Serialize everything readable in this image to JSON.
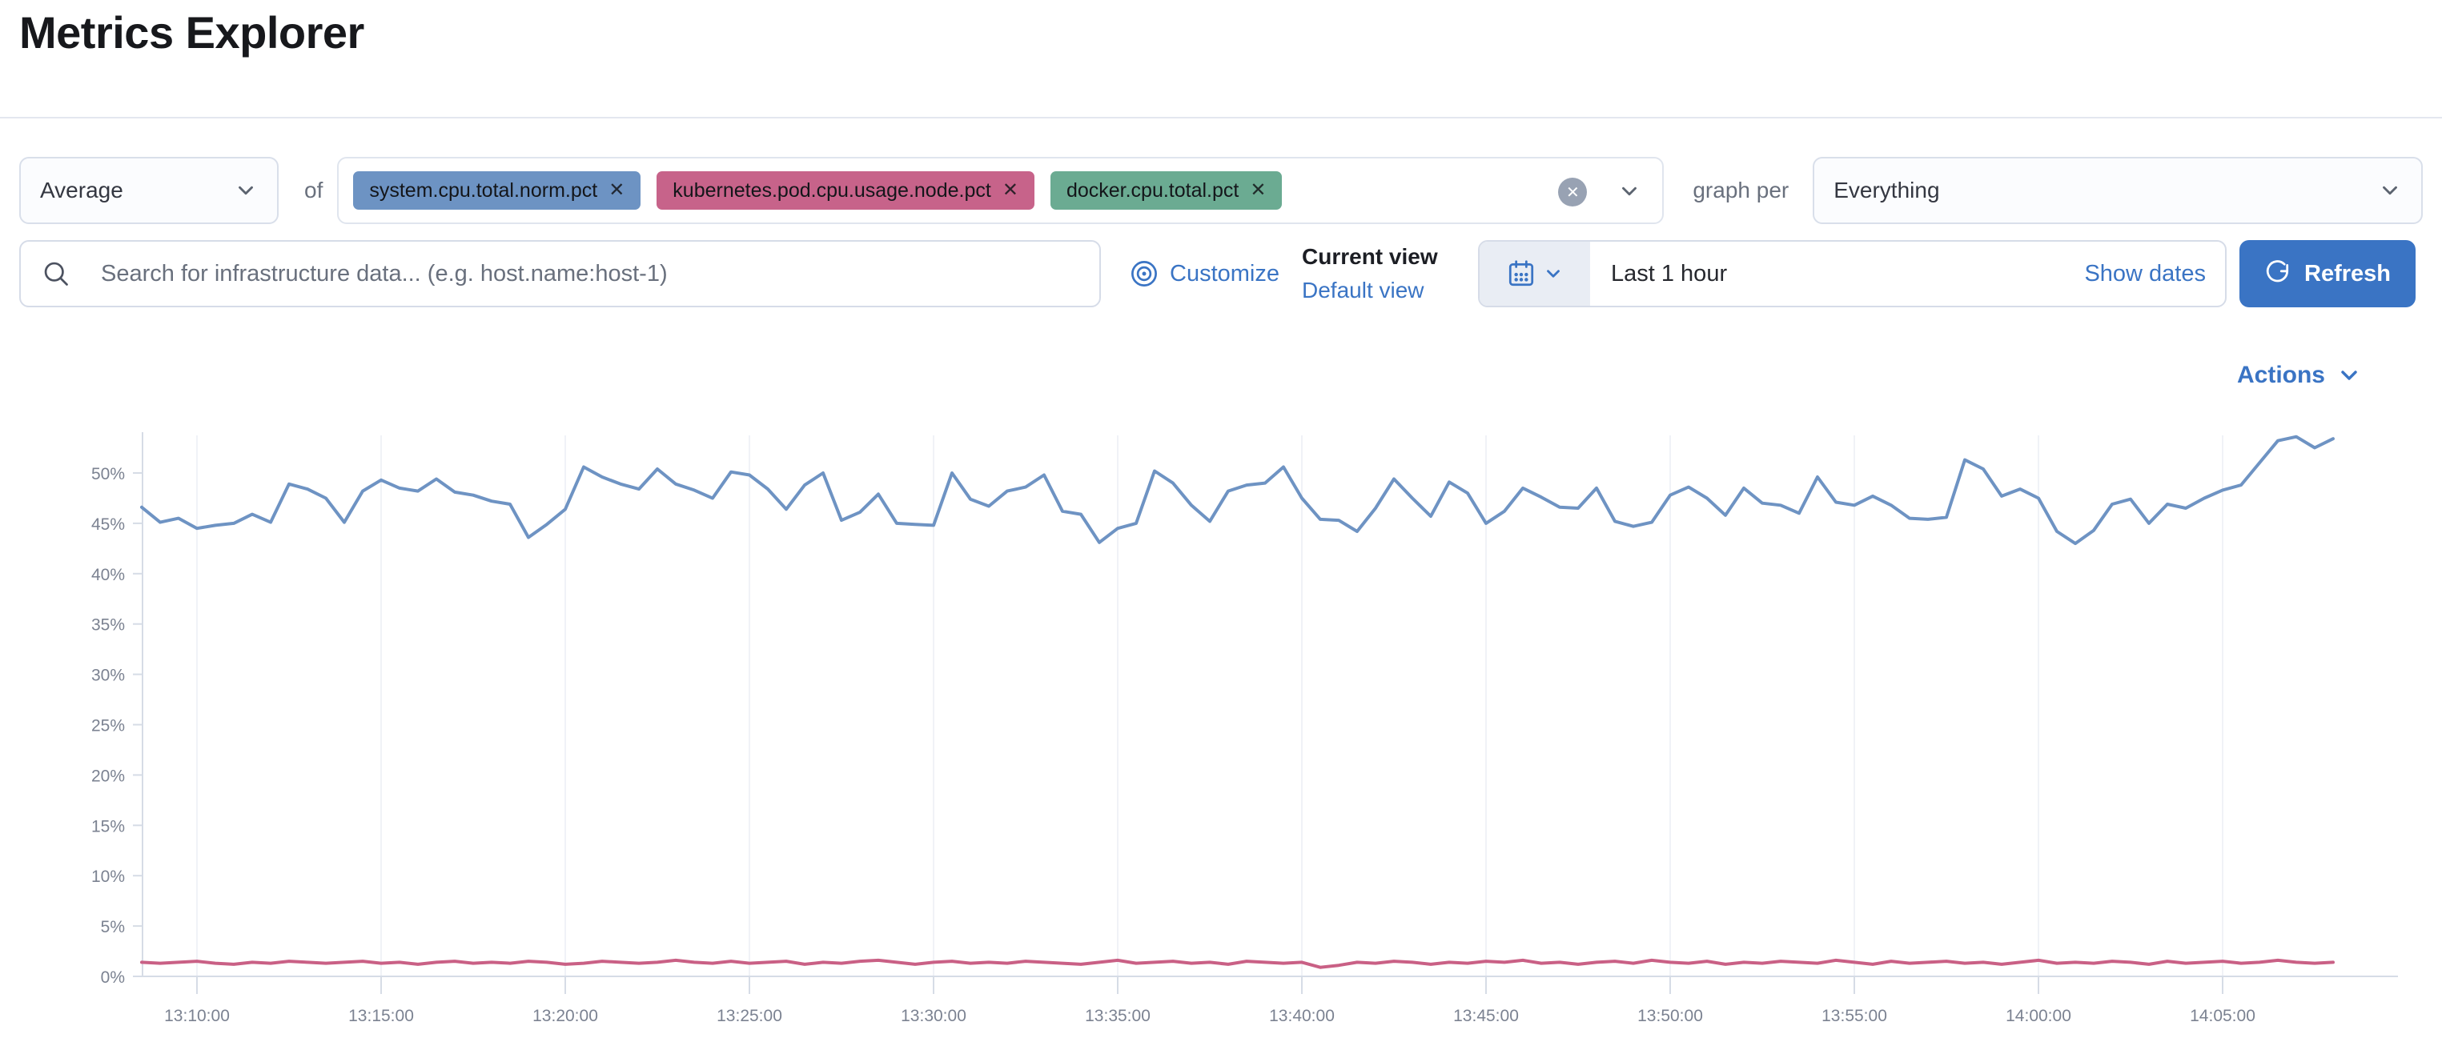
{
  "page": {
    "title": "Metrics Explorer"
  },
  "toolbar": {
    "aggregation": {
      "value": "Average"
    },
    "of_label": "of",
    "metrics": [
      {
        "label": "system.cpu.total.norm.pct",
        "color": "#6d93c3"
      },
      {
        "label": "kubernetes.pod.cpu.usage.node.pct",
        "color": "#c7638a"
      },
      {
        "label": "docker.cpu.total.pct",
        "color": "#6bab92"
      }
    ],
    "graph_per_label": "graph per",
    "group_by": {
      "value": "Everything"
    }
  },
  "search": {
    "placeholder": "Search for infrastructure data... (e.g. host.name:host-1)"
  },
  "view_controls": {
    "customize_label": "Customize",
    "current_view_label": "Current view",
    "default_view_label": "Default view"
  },
  "time_picker": {
    "value": "Last 1 hour",
    "show_dates_label": "Show dates",
    "refresh_label": "Refresh"
  },
  "actions": {
    "label": "Actions"
  },
  "colors": {
    "accent_blue": "#3a74c4",
    "axis_gray": "#d6dce6",
    "tick_text": "#7b8291"
  },
  "chart_data": {
    "type": "line",
    "title": "",
    "xlabel": "",
    "ylabel": "",
    "ylim": [
      0,
      54
    ],
    "grid": "faint-vertical",
    "legend": "none",
    "y_ticks": [
      0,
      5,
      10,
      15,
      20,
      25,
      30,
      35,
      40,
      45,
      50
    ],
    "y_tick_suffix": "%",
    "x_tick_labels": [
      "13:10:00",
      "13:15:00",
      "13:20:00",
      "13:25:00",
      "13:30:00",
      "13:35:00",
      "13:40:00",
      "13:45:00",
      "13:50:00",
      "13:55:00",
      "14:00:00",
      "14:05:00"
    ],
    "x_tick_interval_min": 5,
    "x_start_offset_min": -1.5,
    "x_step_min": 0.5,
    "series": [
      {
        "name": "system.cpu.total.norm.pct",
        "color": "#6e93c3",
        "unit": "%",
        "values": [
          46.6,
          45.1,
          45.5,
          44.5,
          44.8,
          45.0,
          45.9,
          45.1,
          48.9,
          48.4,
          47.5,
          45.1,
          48.2,
          49.3,
          48.5,
          48.2,
          49.4,
          48.1,
          47.8,
          47.2,
          46.9,
          43.6,
          44.9,
          46.4,
          50.6,
          49.6,
          48.9,
          48.4,
          50.4,
          48.9,
          48.3,
          47.5,
          50.1,
          49.8,
          48.4,
          46.4,
          48.8,
          50.0,
          45.3,
          46.1,
          47.9,
          45.0,
          44.9,
          44.8,
          50.0,
          47.4,
          46.7,
          48.2,
          48.6,
          49.8,
          46.2,
          45.9,
          43.1,
          44.5,
          45.0,
          50.2,
          49.0,
          46.8,
          45.2,
          48.2,
          48.8,
          49.0,
          50.6,
          47.5,
          45.4,
          45.3,
          44.2,
          46.5,
          49.4,
          47.5,
          45.7,
          49.1,
          48.0,
          45.0,
          46.2,
          48.5,
          47.6,
          46.6,
          46.5,
          48.5,
          45.2,
          44.7,
          45.1,
          47.8,
          48.6,
          47.5,
          45.8,
          48.5,
          47.0,
          46.8,
          46.0,
          49.6,
          47.1,
          46.8,
          47.7,
          46.8,
          45.5,
          45.4,
          45.6,
          51.3,
          50.4,
          47.7,
          48.4,
          47.5,
          44.2,
          43.0,
          44.3,
          46.9,
          47.4,
          45.0,
          46.9,
          46.5,
          47.5,
          48.3,
          48.8,
          51.0,
          53.2,
          53.6,
          52.5,
          53.4
        ]
      },
      {
        "name": "kubernetes.pod.cpu.usage.node.pct",
        "color": "#c96085",
        "unit": "%",
        "values": [
          1.4,
          1.3,
          1.4,
          1.5,
          1.3,
          1.2,
          1.4,
          1.3,
          1.5,
          1.4,
          1.3,
          1.4,
          1.5,
          1.3,
          1.4,
          1.2,
          1.4,
          1.5,
          1.3,
          1.4,
          1.3,
          1.5,
          1.4,
          1.2,
          1.3,
          1.5,
          1.4,
          1.3,
          1.4,
          1.6,
          1.4,
          1.3,
          1.5,
          1.3,
          1.4,
          1.5,
          1.2,
          1.4,
          1.3,
          1.5,
          1.6,
          1.4,
          1.2,
          1.4,
          1.5,
          1.3,
          1.4,
          1.3,
          1.5,
          1.4,
          1.3,
          1.2,
          1.4,
          1.6,
          1.3,
          1.4,
          1.5,
          1.3,
          1.4,
          1.2,
          1.5,
          1.4,
          1.3,
          1.4,
          0.9,
          1.1,
          1.4,
          1.3,
          1.5,
          1.4,
          1.2,
          1.4,
          1.3,
          1.5,
          1.4,
          1.6,
          1.3,
          1.4,
          1.2,
          1.4,
          1.5,
          1.3,
          1.6,
          1.4,
          1.3,
          1.5,
          1.2,
          1.4,
          1.3,
          1.5,
          1.4,
          1.3,
          1.6,
          1.4,
          1.2,
          1.5,
          1.3,
          1.4,
          1.5,
          1.3,
          1.4,
          1.2,
          1.4,
          1.6,
          1.3,
          1.4,
          1.3,
          1.5,
          1.4,
          1.2,
          1.5,
          1.3,
          1.4,
          1.5,
          1.3,
          1.4,
          1.6,
          1.4,
          1.3,
          1.4
        ]
      }
    ]
  }
}
